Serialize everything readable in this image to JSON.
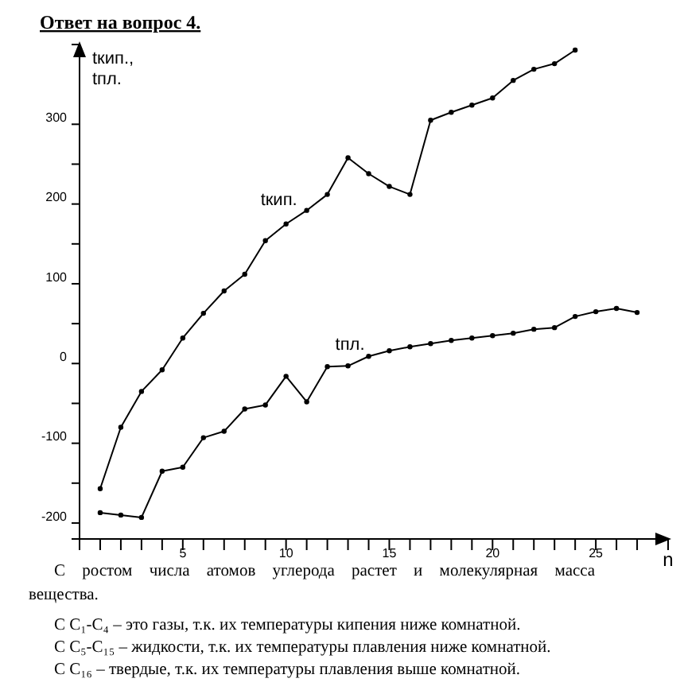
{
  "chart_data": {
    "type": "line",
    "title": "Ответ на вопрос 4.",
    "ylabel": "tкип.,\ntпл.",
    "xlabel": "n",
    "xlim": [
      0,
      28.5
    ],
    "xticks": [
      {
        "value": 1,
        "label": null
      },
      {
        "value": 2,
        "label": null
      },
      {
        "value": 3,
        "label": null
      },
      {
        "value": 4,
        "label": null
      },
      5,
      {
        "value": 6,
        "label": null
      },
      {
        "value": 7,
        "label": null
      },
      {
        "value": 8,
        "label": null
      },
      {
        "value": 9,
        "label": null
      },
      10,
      {
        "value": 11,
        "label": null
      },
      {
        "value": 12,
        "label": null
      },
      {
        "value": 13,
        "label": null
      },
      {
        "value": 14,
        "label": null
      },
      15,
      {
        "value": 16,
        "label": null
      },
      {
        "value": 17,
        "label": null
      },
      {
        "value": 18,
        "label": null
      },
      {
        "value": 19,
        "label": null
      },
      20,
      {
        "value": 21,
        "label": null
      },
      {
        "value": 22,
        "label": null
      },
      {
        "value": 23,
        "label": null
      },
      {
        "value": 24,
        "label": null
      },
      25,
      {
        "value": 26,
        "label": null
      },
      {
        "value": 27,
        "label": null
      }
    ],
    "ylim": [
      -220,
      400
    ],
    "yticks": [
      -200,
      {
        "value": -150,
        "label": null
      },
      -100,
      {
        "value": -50,
        "label": null
      },
      0,
      {
        "value": 50,
        "label": null
      },
      100,
      {
        "value": 150,
        "label": null
      },
      200,
      {
        "value": 250,
        "label": null
      },
      300
    ],
    "grid": false,
    "marker": "circle",
    "line_style": "solid",
    "series": [
      {
        "name": "tкип.",
        "color": "#000000",
        "x": [
          1,
          2,
          3,
          4,
          5,
          6,
          7,
          8,
          9,
          10,
          11,
          12,
          13,
          14,
          15,
          16,
          17,
          18,
          19,
          20,
          21,
          22,
          23,
          24
        ],
        "values": [
          -157,
          -80,
          -35,
          -8,
          32,
          63,
          91,
          112,
          154,
          175,
          192,
          212,
          258,
          238,
          222,
          212,
          305,
          315,
          324,
          333,
          355,
          369,
          376,
          393
        ]
      },
      {
        "name": "tпл.",
        "color": "#000000",
        "x": [
          1,
          2,
          3,
          4,
          5,
          6,
          7,
          8,
          9,
          10,
          11,
          12,
          13,
          14,
          15,
          16,
          17,
          18,
          19,
          20,
          21,
          22,
          23,
          24,
          25,
          26,
          27
        ],
        "values": [
          -187,
          -190,
          -193,
          -135,
          -130,
          -93,
          -85,
          -57,
          -52,
          -16,
          -48,
          -4,
          -3,
          9,
          16,
          21,
          25,
          29,
          32,
          35,
          38,
          43,
          45,
          59,
          65,
          69,
          64
        ]
      }
    ],
    "annotations": [
      "С ростом числа атомов углерода растет и молекулярная масса вещества.",
      "С C₁-C₄ – это газы, т.к. их температуры кипения ниже комнатной.",
      "С C₅-C₁₅ – жидкости, т.к. их температуры плавления ниже комнатной.",
      "С C₁₆ – твердые, т.к. их температуры плавления выше комнатной."
    ]
  }
}
